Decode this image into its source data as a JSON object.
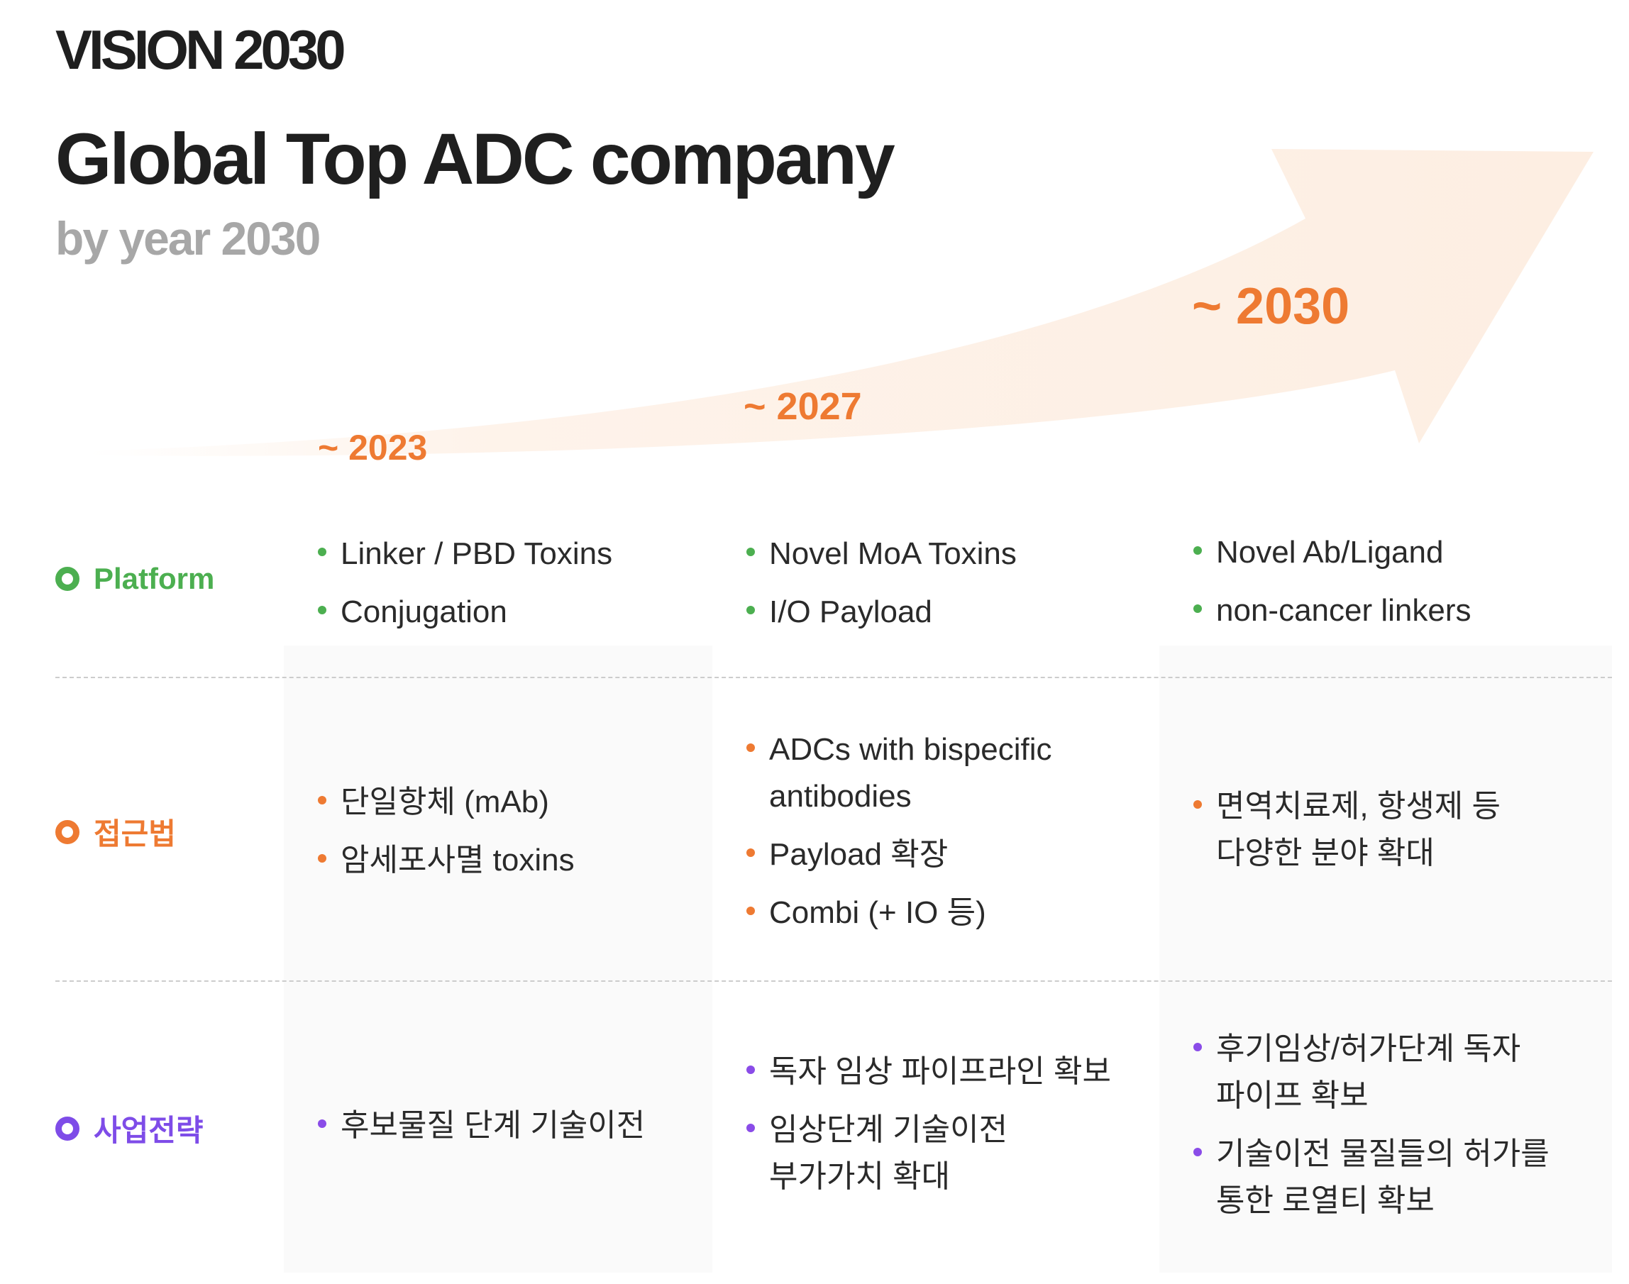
{
  "header": {
    "vision": "VISION 2030",
    "headline": "Global Top ADC company",
    "subline": "by year 2030"
  },
  "colors": {
    "accent": "#ee7a32",
    "platform": "#4caf50",
    "approach": "#ee7a32",
    "strategy": "#7e4ce8",
    "arrow": "#fdeee2"
  },
  "years": [
    "~ 2023",
    "~ 2027",
    "~ 2030"
  ],
  "rows": {
    "platform": {
      "label": "Platform",
      "cells": [
        [
          "Linker / PBD Toxins",
          "Conjugation"
        ],
        [
          "Novel MoA Toxins",
          "I/O Payload"
        ],
        [
          "Novel Ab/Ligand",
          "non-cancer linkers"
        ]
      ]
    },
    "approach": {
      "label": "접근법",
      "cells": [
        [
          "단일항체 (mAb)",
          "암세포사멸 toxins"
        ],
        [
          "ADCs with bispecific antibodies",
          "Payload 확장",
          "Combi (+ IO 등)"
        ],
        [
          "면역치료제, 항생제 등 다양한 분야 확대"
        ]
      ]
    },
    "strategy": {
      "label": "사업전략",
      "cells": [
        [
          "후보물질 단계 기술이전"
        ],
        [
          "독자 임상 파이프라인 확보",
          "임상단계 기술이전 부가가치 확대"
        ],
        [
          "후기임상/허가단계 독자 파이프 확보",
          "기술이전 물질들의 허가를 통한 로열티 확보"
        ]
      ]
    }
  }
}
